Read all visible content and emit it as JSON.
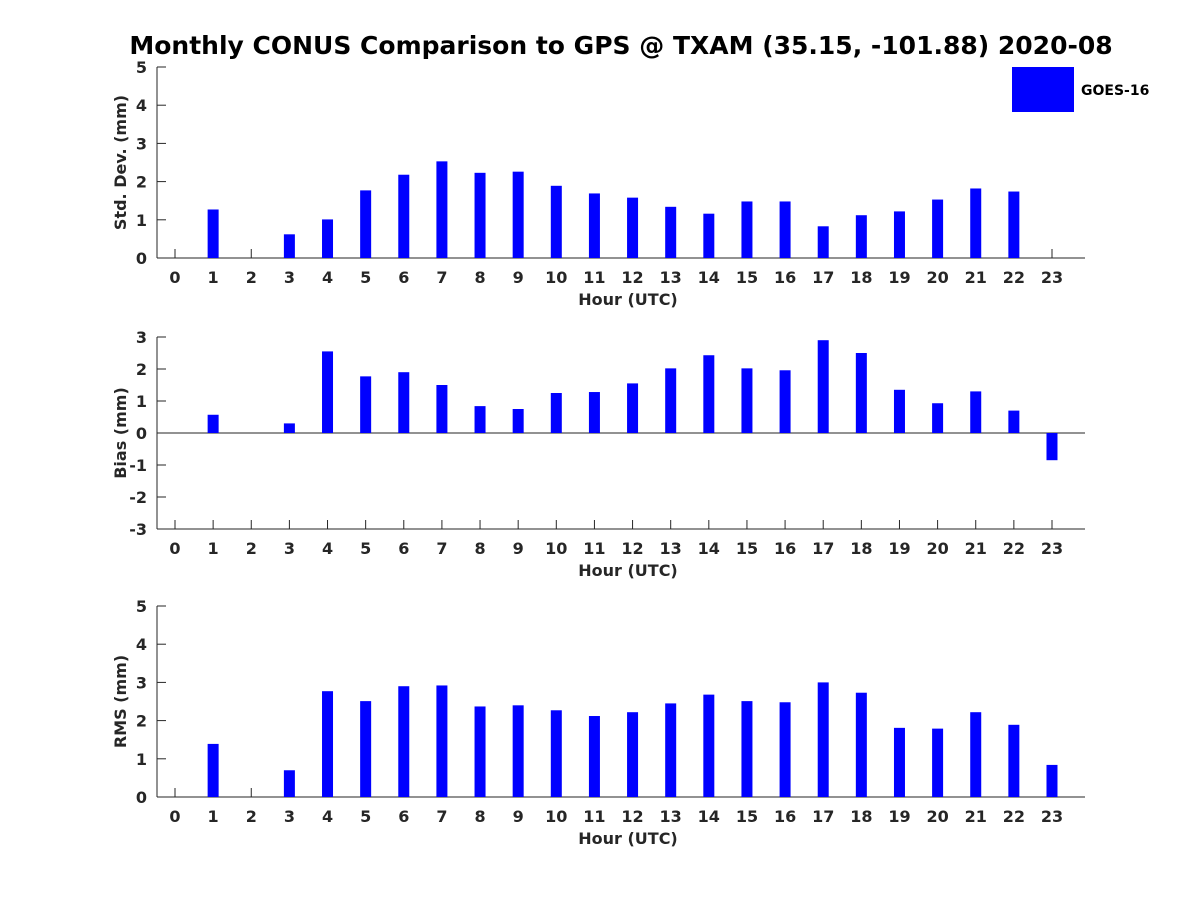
{
  "chart_data": [
    {
      "type": "bar",
      "title": "Monthly CONUS Comparison to GPS @ TXAM (35.15, -101.88) 2020-08",
      "xlabel": "Hour (UTC)",
      "ylabel": "Std. Dev. (mm)",
      "ylim": [
        0,
        5
      ],
      "yticks": [
        0,
        1,
        2,
        3,
        4,
        5
      ],
      "categories": [
        "0",
        "1",
        "2",
        "3",
        "4",
        "5",
        "6",
        "7",
        "8",
        "9",
        "10",
        "11",
        "12",
        "13",
        "14",
        "15",
        "16",
        "17",
        "18",
        "19",
        "20",
        "21",
        "22",
        "23"
      ],
      "series": [
        {
          "name": "GOES-16",
          "color": "#0000ff",
          "values": [
            null,
            1.27,
            null,
            0.62,
            1.01,
            1.77,
            2.18,
            2.53,
            2.23,
            2.26,
            1.89,
            1.69,
            1.58,
            1.34,
            1.16,
            1.48,
            1.48,
            0.83,
            1.12,
            1.22,
            1.53,
            1.82,
            1.74,
            null
          ]
        }
      ],
      "legend": {
        "position": "top-right",
        "entries": [
          "GOES-16"
        ]
      }
    },
    {
      "type": "bar",
      "xlabel": "Hour (UTC)",
      "ylabel": "Bias (mm)",
      "ylim": [
        -3,
        3
      ],
      "yticks": [
        -3,
        -2,
        -1,
        0,
        1,
        2,
        3
      ],
      "zero_line": true,
      "categories": [
        "0",
        "1",
        "2",
        "3",
        "4",
        "5",
        "6",
        "7",
        "8",
        "9",
        "10",
        "11",
        "12",
        "13",
        "14",
        "15",
        "16",
        "17",
        "18",
        "19",
        "20",
        "21",
        "22",
        "23"
      ],
      "series": [
        {
          "name": "GOES-16",
          "color": "#0000ff",
          "values": [
            null,
            0.57,
            null,
            0.3,
            2.55,
            1.77,
            1.9,
            1.5,
            0.84,
            0.75,
            1.25,
            1.28,
            1.55,
            2.02,
            2.43,
            2.02,
            1.96,
            2.9,
            2.5,
            1.35,
            0.93,
            1.3,
            0.7,
            -0.85
          ]
        }
      ]
    },
    {
      "type": "bar",
      "xlabel": "Hour (UTC)",
      "ylabel": "RMS (mm)",
      "ylim": [
        0,
        5
      ],
      "yticks": [
        0,
        1,
        2,
        3,
        4,
        5
      ],
      "categories": [
        "0",
        "1",
        "2",
        "3",
        "4",
        "5",
        "6",
        "7",
        "8",
        "9",
        "10",
        "11",
        "12",
        "13",
        "14",
        "15",
        "16",
        "17",
        "18",
        "19",
        "20",
        "21",
        "22",
        "23"
      ],
      "series": [
        {
          "name": "GOES-16",
          "color": "#0000ff",
          "values": [
            null,
            1.39,
            null,
            0.7,
            2.77,
            2.51,
            2.9,
            2.92,
            2.37,
            2.4,
            2.27,
            2.12,
            2.22,
            2.45,
            2.68,
            2.51,
            2.48,
            3.0,
            2.73,
            1.81,
            1.79,
            2.22,
            1.89,
            0.84
          ]
        }
      ]
    }
  ]
}
